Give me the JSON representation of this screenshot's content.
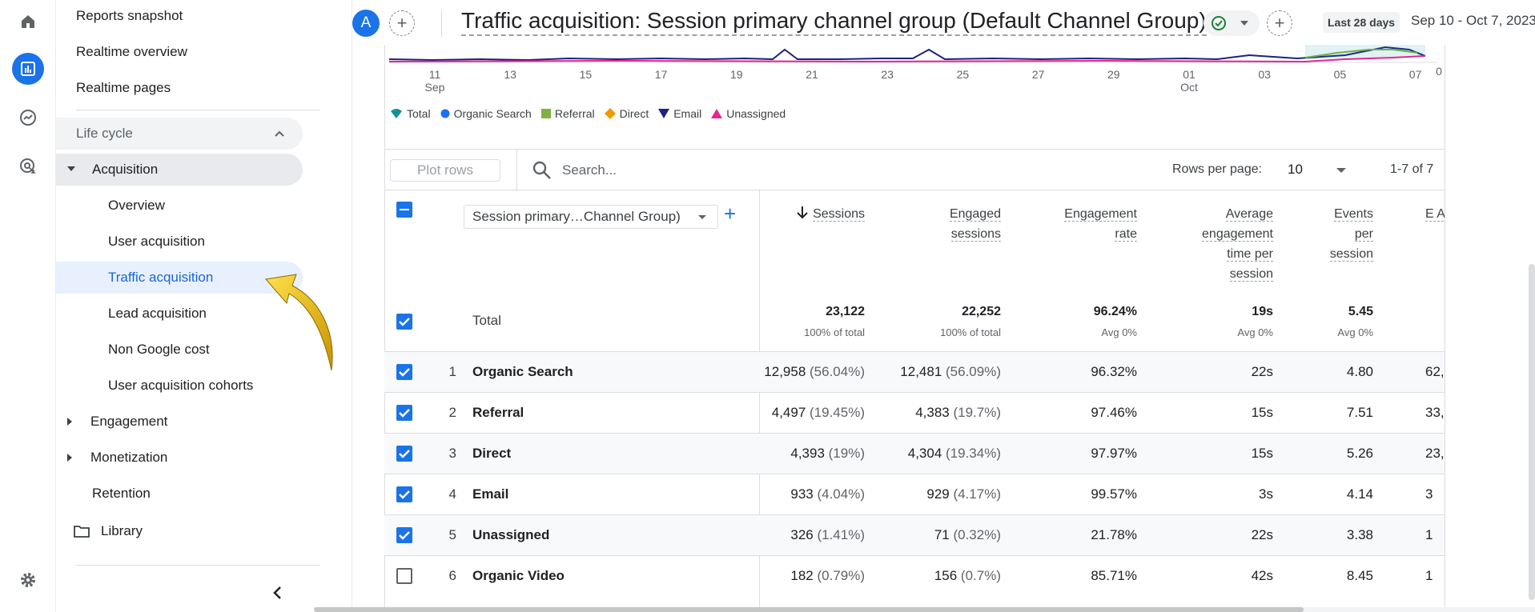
{
  "rail": {
    "icons": [
      "home-icon",
      "reports-icon",
      "explore-icon",
      "advertising-icon",
      "settings-icon"
    ]
  },
  "sidebar": {
    "items": [
      {
        "label": "Reports snapshot"
      },
      {
        "label": "Realtime overview"
      },
      {
        "label": "Realtime pages"
      }
    ],
    "group": {
      "label": "Life cycle"
    },
    "acquisition": {
      "label": "Acquisition",
      "children": [
        {
          "label": "Overview"
        },
        {
          "label": "User acquisition"
        },
        {
          "label": "Traffic acquisition"
        },
        {
          "label": "Lead acquisition"
        },
        {
          "label": "Non Google cost"
        },
        {
          "label": "User acquisition cohorts"
        }
      ]
    },
    "engagement": {
      "label": "Engagement"
    },
    "monetization": {
      "label": "Monetization"
    },
    "retention": {
      "label": "Retention"
    },
    "library": {
      "label": "Library"
    }
  },
  "header": {
    "avatar_letter": "A",
    "title": "Traffic acquisition: Session primary channel group (Default Channel Group)",
    "date_badge": "Last 28 days",
    "date_range": "Sep 10 - Oct 7, 2023"
  },
  "chart": {
    "x_ticks": [
      {
        "label": "11",
        "sub": "Sep"
      },
      {
        "label": "13",
        "sub": ""
      },
      {
        "label": "15",
        "sub": ""
      },
      {
        "label": "17",
        "sub": ""
      },
      {
        "label": "19",
        "sub": ""
      },
      {
        "label": "21",
        "sub": ""
      },
      {
        "label": "23",
        "sub": ""
      },
      {
        "label": "25",
        "sub": ""
      },
      {
        "label": "27",
        "sub": ""
      },
      {
        "label": "29",
        "sub": ""
      },
      {
        "label": "01",
        "sub": "Oct"
      },
      {
        "label": "03",
        "sub": ""
      },
      {
        "label": "05",
        "sub": ""
      },
      {
        "label": "07",
        "sub": ""
      }
    ],
    "y_zero": "0",
    "legend": [
      {
        "label": "Total",
        "color": "#12939a",
        "shape": "drop"
      },
      {
        "label": "Organic Search",
        "color": "#1a73e8",
        "shape": "circle"
      },
      {
        "label": "Referral",
        "color": "#7cb342",
        "shape": "square"
      },
      {
        "label": "Direct",
        "color": "#f29900",
        "shape": "diamond"
      },
      {
        "label": "Email",
        "color": "#1a237e",
        "shape": "triangle-down"
      },
      {
        "label": "Unassigned",
        "color": "#e52592",
        "shape": "triangle-up"
      }
    ]
  },
  "toolbar": {
    "plot_rows_label": "Plot rows",
    "search_placeholder": "Search...",
    "rows_per_page_label": "Rows per page:",
    "rows_per_page_value": "10",
    "pager": "1-7 of 7"
  },
  "table": {
    "dimension_select": "Session primary…Channel Group)",
    "columns": [
      {
        "label": "Sessions"
      },
      {
        "label": "Engaged sessions"
      },
      {
        "label": "Engagement rate"
      },
      {
        "label": "Average engagement time per session"
      },
      {
        "label": "Events per session"
      },
      {
        "label": "E Al"
      }
    ],
    "total_label": "Total",
    "totals": [
      {
        "value": "23,122",
        "sub": "100% of total"
      },
      {
        "value": "22,252",
        "sub": "100% of total"
      },
      {
        "value": "96.24%",
        "sub": "Avg 0%"
      },
      {
        "value": "19s",
        "sub": "Avg 0%"
      },
      {
        "value": "5.45",
        "sub": "Avg 0%"
      }
    ],
    "rows": [
      {
        "idx": "1",
        "name": "Organic Search",
        "checked": true,
        "sessions": "12,958",
        "sessions_pct": "(56.04%)",
        "engaged": "12,481",
        "engaged_pct": "(56.09%)",
        "rate": "96.32%",
        "avg_time": "22s",
        "events": "4.80",
        "extra": "62,"
      },
      {
        "idx": "2",
        "name": "Referral",
        "checked": true,
        "sessions": "4,497",
        "sessions_pct": "(19.45%)",
        "engaged": "4,383",
        "engaged_pct": "(19.7%)",
        "rate": "97.46%",
        "avg_time": "15s",
        "events": "7.51",
        "extra": "33,"
      },
      {
        "idx": "3",
        "name": "Direct",
        "checked": true,
        "sessions": "4,393",
        "sessions_pct": "(19%)",
        "engaged": "4,304",
        "engaged_pct": "(19.34%)",
        "rate": "97.97%",
        "avg_time": "15s",
        "events": "5.26",
        "extra": "23,"
      },
      {
        "idx": "4",
        "name": "Email",
        "checked": true,
        "sessions": "933",
        "sessions_pct": "(4.04%)",
        "engaged": "929",
        "engaged_pct": "(4.17%)",
        "rate": "99.57%",
        "avg_time": "3s",
        "events": "4.14",
        "extra": "3"
      },
      {
        "idx": "5",
        "name": "Unassigned",
        "checked": true,
        "sessions": "326",
        "sessions_pct": "(1.41%)",
        "engaged": "71",
        "engaged_pct": "(0.32%)",
        "rate": "21.78%",
        "avg_time": "22s",
        "events": "3.38",
        "extra": "1"
      },
      {
        "idx": "6",
        "name": "Organic Video",
        "checked": false,
        "sessions": "182",
        "sessions_pct": "(0.79%)",
        "engaged": "156",
        "engaged_pct": "(0.7%)",
        "rate": "85.71%",
        "avg_time": "42s",
        "events": "8.45",
        "extra": "1"
      }
    ]
  }
}
